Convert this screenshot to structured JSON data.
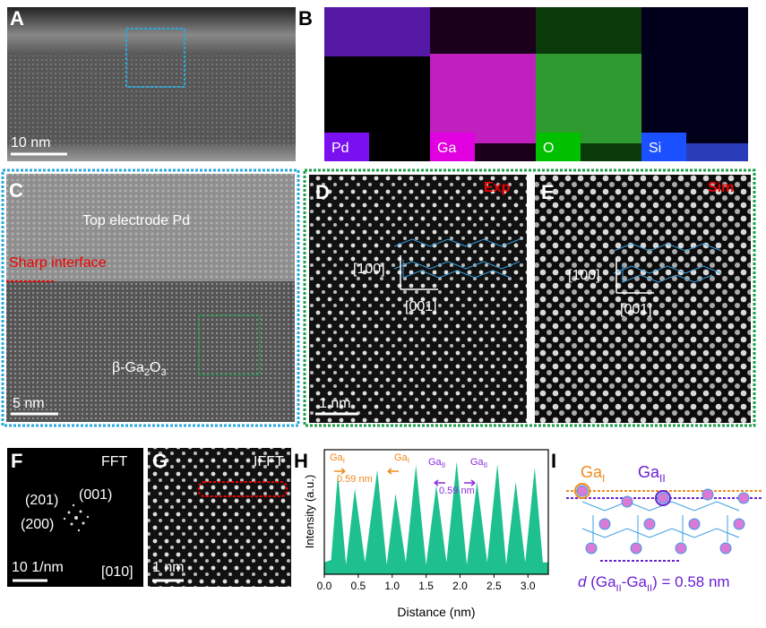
{
  "panels": {
    "A": {
      "label": "A",
      "scale_bar": "10 nm"
    },
    "B": {
      "label": "B",
      "maps": [
        "Pd",
        "Ga",
        "O",
        "Si"
      ]
    },
    "C": {
      "label": "C",
      "layer": "Top electrode Pd",
      "interface": "Sharp interface",
      "material": [
        "β-Ga",
        "2",
        "O",
        "3"
      ],
      "scale_bar": "5 nm"
    },
    "D": {
      "label": "D",
      "tag": "Exp",
      "dir1": "[100]",
      "dir2": "[001]",
      "scale_bar": "1 nm"
    },
    "E": {
      "label": "E",
      "tag": "Sim",
      "dir1": "[100]",
      "dir2": "[001]"
    },
    "F": {
      "label": "F",
      "tag": "FFT",
      "spots": [
        "(201)",
        "(001)",
        "(200)"
      ],
      "scale_bar": "10 1/nm",
      "zone": "[010]"
    },
    "G": {
      "label": "G",
      "tag": "IFFT",
      "scale_bar": "1 nm"
    },
    "H": {
      "label": "H"
    },
    "I": {
      "label": "I",
      "site1": [
        "Ga",
        "I"
      ],
      "site2": [
        "Ga",
        "II"
      ],
      "distance": [
        "d",
        " (Ga",
        "II",
        "-Ga",
        "II",
        ") = 0.58 nm"
      ]
    }
  },
  "chart_data": {
    "type": "area",
    "x_label": "Distance (nm)",
    "y_label": "Intensity (a.u.)",
    "x": [
      0,
      0.1,
      0.2,
      0.32,
      0.45,
      0.6,
      0.78,
      0.92,
      1.05,
      1.2,
      1.35,
      1.5,
      1.65,
      1.8,
      1.95,
      2.1,
      2.25,
      2.4,
      2.55,
      2.68,
      2.82,
      2.96,
      3.1,
      3.22,
      3.3
    ],
    "series": [
      {
        "name": "Intensity",
        "color": "#1fc08f",
        "values": [
          0.1,
          0.12,
          0.85,
          0.08,
          0.72,
          0.1,
          0.88,
          0.08,
          0.68,
          0.1,
          0.92,
          0.08,
          0.75,
          0.1,
          0.95,
          0.08,
          0.78,
          0.1,
          0.93,
          0.08,
          0.78,
          0.1,
          0.9,
          0.1,
          0.1
        ]
      }
    ],
    "xlim": [
      0,
      3.3
    ],
    "ylim": [
      0,
      1.05
    ],
    "xticks": [
      {
        "value": 0,
        "label": "0.0"
      },
      0.5,
      {
        "value": 1,
        "label": "1.0"
      },
      1.5,
      {
        "value": 2,
        "label": "2.0"
      },
      2.5,
      {
        "value": 3,
        "label": "3.0"
      }
    ],
    "annotations": [
      {
        "base": "Ga",
        "sub": "I"
      },
      "0.59 nm",
      {
        "base": "Ga",
        "sub": "I"
      },
      {
        "base": "Ga",
        "sub": "II"
      },
      "0.59 nm",
      {
        "base": "Ga",
        "sub": "II"
      }
    ]
  }
}
